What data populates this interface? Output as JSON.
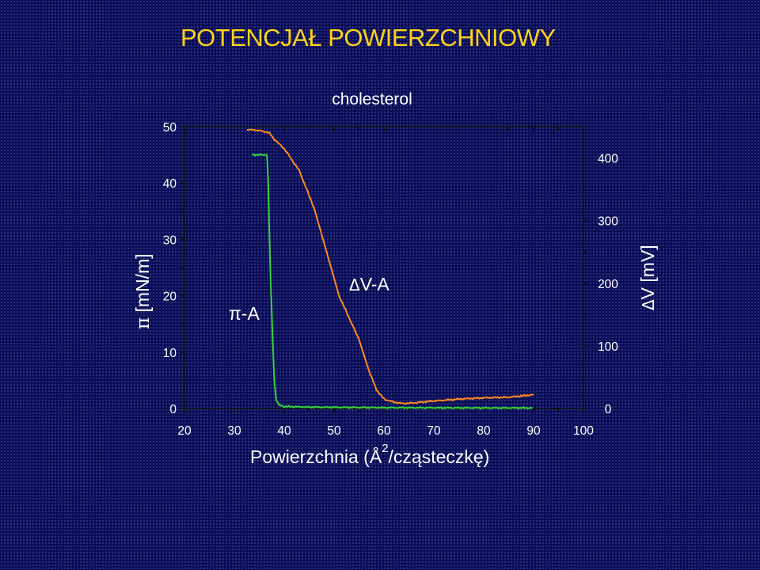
{
  "title": "POTENCJAŁ POWIERZCHNIOWY",
  "chart_data": {
    "type": "line",
    "title": "cholesterol",
    "xlabel_main": "Powierzchnia (Å",
    "xlabel_sup": "2",
    "xlabel_rest": "/cząsteczkę)",
    "ylabel_left_symbol": "π",
    "ylabel_left_unit": " [mN/m]",
    "ylabel_right_symbol": "Δ",
    "ylabel_right_unit": "V [mV]",
    "xlim": [
      20,
      100
    ],
    "ylim_left": [
      0,
      50
    ],
    "ylim_right": [
      0,
      450
    ],
    "xticks": [
      "20",
      "30",
      "40",
      "50",
      "60",
      "70",
      "80",
      "90",
      "100"
    ],
    "yticks_left": [
      "0",
      "10",
      "20",
      "30",
      "40",
      "50"
    ],
    "yticks_right": [
      "0",
      "100",
      "200",
      "300",
      "400"
    ],
    "annotations": {
      "pi_a": "π-A",
      "dv_a_symbol": "Δ",
      "dv_a_text": "V-A"
    },
    "series": [
      {
        "name": "π-A",
        "axis": "left",
        "color": "#35d43a",
        "x": [
          33.5,
          36.5,
          36.6,
          36.8,
          37.0,
          37.3,
          37.7,
          38.0,
          38.4,
          39.0,
          40.0,
          45.0,
          60.0,
          80.0,
          89.8
        ],
        "y": [
          45.0,
          45.0,
          44.0,
          40.0,
          32.0,
          22.0,
          12.0,
          5.0,
          1.5,
          0.6,
          0.35,
          0.25,
          0.15,
          0.1,
          0.1
        ]
      },
      {
        "name": "ΔV-A",
        "axis": "right",
        "color": "#ff8a1e",
        "x": [
          32.5,
          34.0,
          35.5,
          37.0,
          38.0,
          40.0,
          43.0,
          46.0,
          48.5,
          51.0,
          53.0,
          55.0,
          57.0,
          58.5,
          60.0,
          62.0,
          64.0,
          66.0,
          70.0,
          75.0,
          80.0,
          85.0,
          90.0
        ],
        "y": [
          445,
          445,
          443,
          440,
          430,
          415,
          380,
          320,
          250,
          180,
          145,
          110,
          60,
          30,
          15,
          10,
          8,
          9,
          12,
          15,
          17,
          18,
          22
        ]
      }
    ]
  }
}
